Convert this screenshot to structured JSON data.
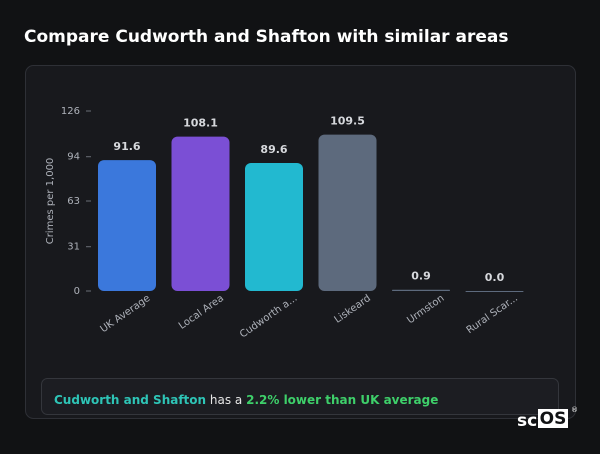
{
  "header": {
    "title": "Compare Cudworth and Shafton with similar areas"
  },
  "chart_data": {
    "type": "bar",
    "y_label": "Crimes per 1,000",
    "categories": [
      "UK Average",
      "Local Area",
      "Cudworth a...",
      "Liskeard",
      "Urmston",
      "Rural Scar..."
    ],
    "values": [
      91.6,
      108.1,
      89.6,
      109.5,
      0.9,
      0
    ],
    "value_labels": [
      "91.6",
      "108.1",
      "89.6",
      "109.5",
      "0.9",
      "0.0"
    ],
    "colors": [
      "#3b78dc",
      "#7b4fd5",
      "#22b9d0",
      "#5d6a7d",
      "#5d6a7d",
      "#5d6a7d"
    ],
    "ylim": [
      0,
      126
    ],
    "yticks": [
      0,
      31,
      63,
      94,
      126
    ]
  },
  "summary": {
    "area": "Cudworth and Shafton",
    "middle": " has a ",
    "comparison": "2.2% lower than UK average"
  },
  "logo": {
    "left": "sc",
    "right": "OS",
    "mark": "®"
  }
}
